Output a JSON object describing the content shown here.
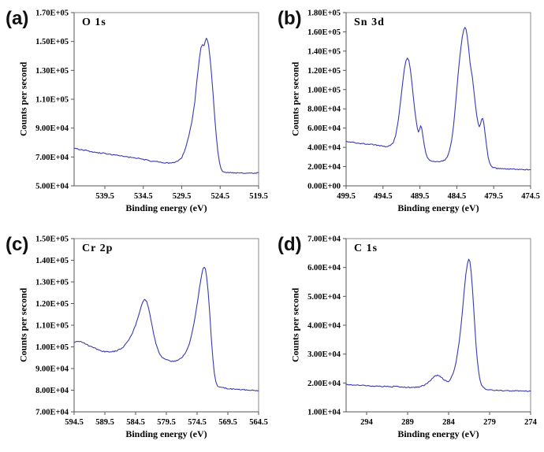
{
  "figure": {
    "background": "#ffffff",
    "line_color": "#3a3aad",
    "frame_color": "#8a8a8a"
  },
  "chart_data": [
    {
      "panel": "(a)",
      "type": "line",
      "title": "O 1s",
      "xlabel": "Binding energy (eV)",
      "ylabel": "Counts per second",
      "x_axis_reversed": true,
      "xlim": [
        543.5,
        519.5
      ],
      "ylim": [
        50000,
        170000
      ],
      "line_color": "#3a3aad",
      "x_ticks": [
        {
          "v": 539.5,
          "label": "539.5"
        },
        {
          "v": 534.5,
          "label": "534.5"
        },
        {
          "v": 529.5,
          "label": "529.5"
        },
        {
          "v": 524.5,
          "label": "524.5"
        },
        {
          "v": 519.5,
          "label": "519.5"
        }
      ],
      "y_ticks": [
        {
          "v": 170000,
          "label": "1.70E+05"
        },
        {
          "v": 150000,
          "label": "1.50E+05"
        },
        {
          "v": 130000,
          "label": "1.30E+05"
        },
        {
          "v": 110000,
          "label": "1.10E+05"
        },
        {
          "v": 90000,
          "label": "9.00E+04"
        },
        {
          "v": 70000,
          "label": "7.00E+04"
        },
        {
          "v": 50000,
          "label": "5.00E+04"
        }
      ],
      "points": [
        [
          543.5,
          76000
        ],
        [
          542.5,
          75000
        ],
        [
          541.5,
          74000
        ],
        [
          540.5,
          73000
        ],
        [
          539.5,
          72500
        ],
        [
          538.5,
          71500
        ],
        [
          537.5,
          70800
        ],
        [
          536.5,
          70000
        ],
        [
          535.5,
          69300
        ],
        [
          534.5,
          68300
        ],
        [
          533.5,
          67200
        ],
        [
          532.5,
          66500
        ],
        [
          531.8,
          66000
        ],
        [
          531.2,
          65800
        ],
        [
          530.6,
          66000
        ],
        [
          530.0,
          67000
        ],
        [
          529.5,
          69500
        ],
        [
          529.0,
          76000
        ],
        [
          528.6,
          84000
        ],
        [
          528.2,
          94000
        ],
        [
          527.8,
          108000
        ],
        [
          527.5,
          124000
        ],
        [
          527.2,
          138000
        ],
        [
          527.0,
          146000
        ],
        [
          526.8,
          147500
        ],
        [
          526.6,
          147000
        ],
        [
          526.45,
          150000
        ],
        [
          526.3,
          152000
        ],
        [
          526.15,
          151000
        ],
        [
          526.0,
          147000
        ],
        [
          525.8,
          138000
        ],
        [
          525.6,
          126000
        ],
        [
          525.4,
          112000
        ],
        [
          525.2,
          97000
        ],
        [
          525.0,
          84000
        ],
        [
          524.8,
          73500
        ],
        [
          524.6,
          66500
        ],
        [
          524.4,
          62000
        ],
        [
          524.2,
          60200
        ],
        [
          524.0,
          59600
        ],
        [
          523.5,
          59200
        ],
        [
          523.0,
          59000
        ],
        [
          522.0,
          59000
        ],
        [
          521.0,
          58800
        ],
        [
          520.0,
          58800
        ],
        [
          519.5,
          59000
        ]
      ]
    },
    {
      "panel": "(b)",
      "type": "line",
      "title": "Sn 3d",
      "xlabel": "Binding energy (eV)",
      "ylabel": "Counts per second",
      "x_axis_reversed": true,
      "xlim": [
        499.5,
        474.5
      ],
      "ylim": [
        0,
        180000
      ],
      "line_color": "#3a3aad",
      "x_ticks": [
        {
          "v": 499.5,
          "label": "499.5"
        },
        {
          "v": 494.5,
          "label": "494.5"
        },
        {
          "v": 489.5,
          "label": "489.5"
        },
        {
          "v": 484.5,
          "label": "484.5"
        },
        {
          "v": 479.5,
          "label": "479.5"
        },
        {
          "v": 474.5,
          "label": "474.5"
        }
      ],
      "y_ticks": [
        {
          "v": 180000,
          "label": "1.80E+05"
        },
        {
          "v": 160000,
          "label": "1.60E+05"
        },
        {
          "v": 140000,
          "label": "1.40E+05"
        },
        {
          "v": 120000,
          "label": "1.20E+05"
        },
        {
          "v": 100000,
          "label": "1.00E+05"
        },
        {
          "v": 80000,
          "label": "8.00E+04"
        },
        {
          "v": 60000,
          "label": "6.00E+04"
        },
        {
          "v": 40000,
          "label": "4.00E+04"
        },
        {
          "v": 20000,
          "label": "2.00E+04"
        },
        {
          "v": 0,
          "label": "0.00E+00"
        }
      ],
      "points": [
        [
          499.5,
          46000
        ],
        [
          498.5,
          45000
        ],
        [
          497.5,
          44000
        ],
        [
          496.5,
          43500
        ],
        [
          495.5,
          42500
        ],
        [
          494.5,
          41200
        ],
        [
          494.0,
          41000
        ],
        [
          493.5,
          42000
        ],
        [
          493.1,
          45000
        ],
        [
          492.8,
          52000
        ],
        [
          492.5,
          64000
        ],
        [
          492.2,
          82000
        ],
        [
          491.9,
          103000
        ],
        [
          491.6,
          121000
        ],
        [
          491.4,
          130000
        ],
        [
          491.2,
          133000
        ],
        [
          491.0,
          130000
        ],
        [
          490.8,
          121000
        ],
        [
          490.6,
          108000
        ],
        [
          490.4,
          93000
        ],
        [
          490.2,
          79000
        ],
        [
          490.0,
          68000
        ],
        [
          489.85,
          60000
        ],
        [
          489.7,
          56000
        ],
        [
          489.55,
          58000
        ],
        [
          489.4,
          62500
        ],
        [
          489.25,
          60000
        ],
        [
          489.1,
          52000
        ],
        [
          488.9,
          42000
        ],
        [
          488.7,
          34000
        ],
        [
          488.5,
          29500
        ],
        [
          488.2,
          27000
        ],
        [
          487.8,
          25800
        ],
        [
          487.3,
          25400
        ],
        [
          486.8,
          25300
        ],
        [
          486.4,
          25800
        ],
        [
          486.1,
          27000
        ],
        [
          485.8,
          30000
        ],
        [
          485.5,
          36000
        ],
        [
          485.2,
          47000
        ],
        [
          484.95,
          62000
        ],
        [
          484.7,
          82000
        ],
        [
          484.45,
          105000
        ],
        [
          484.2,
          126000
        ],
        [
          483.95,
          143000
        ],
        [
          483.75,
          155000
        ],
        [
          483.55,
          162000
        ],
        [
          483.4,
          165000
        ],
        [
          483.25,
          163000
        ],
        [
          483.1,
          156000
        ],
        [
          482.9,
          143000
        ],
        [
          482.7,
          128000
        ],
        [
          482.55,
          120000
        ],
        [
          482.4,
          113000
        ],
        [
          482.2,
          100000
        ],
        [
          482.0,
          86000
        ],
        [
          481.8,
          73000
        ],
        [
          481.6,
          64500
        ],
        [
          481.45,
          61500
        ],
        [
          481.3,
          63500
        ],
        [
          481.15,
          68500
        ],
        [
          481.0,
          70000
        ],
        [
          480.85,
          65000
        ],
        [
          480.65,
          54000
        ],
        [
          480.45,
          41000
        ],
        [
          480.25,
          30000
        ],
        [
          480.05,
          23500
        ],
        [
          479.85,
          20500
        ],
        [
          479.6,
          19000
        ],
        [
          479.2,
          18200
        ],
        [
          478.6,
          17800
        ],
        [
          478.0,
          17500
        ],
        [
          477.0,
          17200
        ],
        [
          476.0,
          17000
        ],
        [
          475.0,
          16800
        ],
        [
          474.5,
          16800
        ]
      ]
    },
    {
      "panel": "(c)",
      "type": "line",
      "title": "Cr 2p",
      "xlabel": "Binding energy (eV)",
      "ylabel": "Counts per second",
      "x_axis_reversed": true,
      "xlim": [
        594.5,
        564.5
      ],
      "ylim": [
        70000,
        150000
      ],
      "line_color": "#3a3aad",
      "x_ticks": [
        {
          "v": 594.5,
          "label": "594.5"
        },
        {
          "v": 589.5,
          "label": "589.5"
        },
        {
          "v": 584.5,
          "label": "584.5"
        },
        {
          "v": 579.5,
          "label": "579.5"
        },
        {
          "v": 574.5,
          "label": "574.5"
        },
        {
          "v": 569.5,
          "label": "569.5"
        },
        {
          "v": 564.5,
          "label": "564.5"
        }
      ],
      "y_ticks": [
        {
          "v": 150000,
          "label": "1.50E+05"
        },
        {
          "v": 140000,
          "label": "1.40E+05"
        },
        {
          "v": 130000,
          "label": "1.30E+05"
        },
        {
          "v": 120000,
          "label": "1.20E+05"
        },
        {
          "v": 110000,
          "label": "1.10E+05"
        },
        {
          "v": 100000,
          "label": "1.00E+05"
        },
        {
          "v": 90000,
          "label": "9.00E+04"
        },
        {
          "v": 80000,
          "label": "8.00E+04"
        },
        {
          "v": 70000,
          "label": "7.00E+04"
        }
      ],
      "points": [
        [
          594.5,
          102000
        ],
        [
          594.0,
          102500
        ],
        [
          593.5,
          102500
        ],
        [
          593.0,
          102000
        ],
        [
          592.5,
          101200
        ],
        [
          592.0,
          100400
        ],
        [
          591.5,
          99800
        ],
        [
          591.0,
          99200
        ],
        [
          590.5,
          98600
        ],
        [
          590.0,
          98100
        ],
        [
          589.5,
          97800
        ],
        [
          589.0,
          97700
        ],
        [
          588.5,
          97800
        ],
        [
          588.0,
          97900
        ],
        [
          587.5,
          98300
        ],
        [
          587.0,
          99000
        ],
        [
          586.5,
          100000
        ],
        [
          586.0,
          101700
        ],
        [
          585.5,
          103800
        ],
        [
          585.0,
          106500
        ],
        [
          584.5,
          110000
        ],
        [
          584.0,
          114500
        ],
        [
          583.6,
          118500
        ],
        [
          583.3,
          121000
        ],
        [
          583.0,
          122000
        ],
        [
          582.7,
          121000
        ],
        [
          582.4,
          118000
        ],
        [
          582.0,
          112500
        ],
        [
          581.6,
          106500
        ],
        [
          581.2,
          101500
        ],
        [
          580.8,
          98000
        ],
        [
          580.4,
          95800
        ],
        [
          580.0,
          94800
        ],
        [
          579.5,
          94000
        ],
        [
          579.0,
          93600
        ],
        [
          578.5,
          93300
        ],
        [
          578.0,
          93500
        ],
        [
          577.5,
          94000
        ],
        [
          577.0,
          95000
        ],
        [
          576.5,
          96800
        ],
        [
          576.0,
          99500
        ],
        [
          575.6,
          103000
        ],
        [
          575.2,
          108000
        ],
        [
          574.8,
          114500
        ],
        [
          574.4,
          121500
        ],
        [
          574.1,
          127500
        ],
        [
          573.8,
          132500
        ],
        [
          573.55,
          135800
        ],
        [
          573.35,
          137000
        ],
        [
          573.15,
          136000
        ],
        [
          572.95,
          132500
        ],
        [
          572.7,
          125500
        ],
        [
          572.45,
          115500
        ],
        [
          572.2,
          104500
        ],
        [
          571.95,
          95000
        ],
        [
          571.7,
          88000
        ],
        [
          571.45,
          84000
        ],
        [
          571.2,
          82200
        ],
        [
          570.9,
          81500
        ],
        [
          570.5,
          81200
        ],
        [
          570.0,
          81000
        ],
        [
          569.5,
          80800
        ],
        [
          569.0,
          80600
        ],
        [
          568.0,
          80300
        ],
        [
          567.0,
          80200
        ],
        [
          566.0,
          80000
        ],
        [
          565.0,
          79800
        ],
        [
          564.5,
          79800
        ]
      ]
    },
    {
      "panel": "(d)",
      "type": "line",
      "title": "C 1s",
      "xlabel": "Binding energy (eV)",
      "ylabel": "Counts per second",
      "x_axis_reversed": true,
      "xlim": [
        296.5,
        274
      ],
      "ylim": [
        10000,
        70000
      ],
      "line_color": "#3a3aad",
      "x_ticks": [
        {
          "v": 294,
          "label": "294"
        },
        {
          "v": 289,
          "label": "289"
        },
        {
          "v": 284,
          "label": "284"
        },
        {
          "v": 279,
          "label": "279"
        },
        {
          "v": 274,
          "label": "274"
        }
      ],
      "y_ticks": [
        {
          "v": 70000,
          "label": "7.00E+04"
        },
        {
          "v": 60000,
          "label": "6.00E+04"
        },
        {
          "v": 50000,
          "label": "5.00E+04"
        },
        {
          "v": 40000,
          "label": "4.00E+04"
        },
        {
          "v": 30000,
          "label": "3.00E+04"
        },
        {
          "v": 20000,
          "label": "2.00E+04"
        },
        {
          "v": 10000,
          "label": "1.00E+04"
        }
      ],
      "points": [
        [
          296.5,
          19500
        ],
        [
          296.0,
          19300
        ],
        [
          295.0,
          19200
        ],
        [
          294.0,
          19000
        ],
        [
          293.0,
          18900
        ],
        [
          292.0,
          18800
        ],
        [
          291.0,
          18700
        ],
        [
          290.4,
          18900
        ],
        [
          290.1,
          18700
        ],
        [
          289.5,
          18600
        ],
        [
          289.0,
          18500
        ],
        [
          288.5,
          18400
        ],
        [
          288.0,
          18500
        ],
        [
          287.5,
          18700
        ],
        [
          287.0,
          19200
        ],
        [
          286.6,
          19900
        ],
        [
          286.2,
          20900
        ],
        [
          285.9,
          21800
        ],
        [
          285.6,
          22400
        ],
        [
          285.35,
          22700
        ],
        [
          285.1,
          22500
        ],
        [
          284.8,
          21700
        ],
        [
          284.5,
          21000
        ],
        [
          284.25,
          20600
        ],
        [
          284.05,
          20500
        ],
        [
          283.9,
          20800
        ],
        [
          283.75,
          21600
        ],
        [
          283.6,
          22400
        ],
        [
          283.45,
          23200
        ],
        [
          283.3,
          24600
        ],
        [
          283.1,
          27000
        ],
        [
          282.9,
          30500
        ],
        [
          282.7,
          34500
        ],
        [
          282.5,
          39500
        ],
        [
          282.3,
          45500
        ],
        [
          282.1,
          52000
        ],
        [
          281.9,
          57500
        ],
        [
          281.7,
          61500
        ],
        [
          281.55,
          63000
        ],
        [
          281.4,
          62000
        ],
        [
          281.25,
          58500
        ],
        [
          281.1,
          53000
        ],
        [
          280.95,
          46500
        ],
        [
          280.8,
          39500
        ],
        [
          280.65,
          33000
        ],
        [
          280.5,
          28000
        ],
        [
          280.35,
          24200
        ],
        [
          280.2,
          21500
        ],
        [
          280.0,
          19500
        ],
        [
          279.8,
          18500
        ],
        [
          279.5,
          17900
        ],
        [
          279.0,
          17600
        ],
        [
          278.0,
          17400
        ],
        [
          277.0,
          17300
        ],
        [
          276.0,
          17250
        ],
        [
          275.0,
          17200
        ],
        [
          274.0,
          17200
        ]
      ]
    }
  ]
}
